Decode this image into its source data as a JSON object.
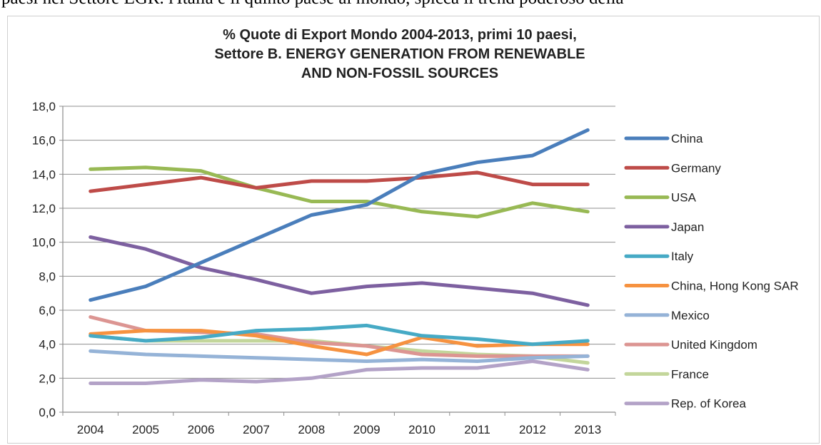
{
  "top_text": "paesi nel Settore EGR. l'Italia è il quinto paese al mondo, spicca il trend poderoso della",
  "chart_data": {
    "type": "line",
    "title_lines": [
      "% Quote di Export Mondo 2004-2013, primi 10 paesi,",
      "Settore B. ENERGY GENERATION FROM RENEWABLE",
      "AND NON-FOSSIL SOURCES"
    ],
    "xlabel": "",
    "ylabel": "",
    "x": [
      "2004",
      "2005",
      "2006",
      "2007",
      "2008",
      "2009",
      "2010",
      "2011",
      "2012",
      "2013"
    ],
    "ylim": [
      0,
      18
    ],
    "yticks": [
      "0,0",
      "2,0",
      "4,0",
      "6,0",
      "8,0",
      "10,0",
      "12,0",
      "14,0",
      "16,0",
      "18,0"
    ],
    "grid": true,
    "legend_position": "right",
    "series": [
      {
        "name": "China",
        "color": "#4a7ebb",
        "values": [
          6.6,
          7.4,
          8.8,
          10.2,
          11.6,
          12.2,
          14.0,
          14.7,
          15.1,
          16.6
        ]
      },
      {
        "name": "Germany",
        "color": "#be4b48",
        "values": [
          13.0,
          13.4,
          13.8,
          13.2,
          13.6,
          13.6,
          13.8,
          14.1,
          13.4,
          13.4
        ]
      },
      {
        "name": "USA",
        "color": "#98b954",
        "values": [
          14.3,
          14.4,
          14.2,
          13.2,
          12.4,
          12.4,
          11.8,
          11.5,
          12.3,
          11.8
        ]
      },
      {
        "name": "Japan",
        "color": "#7d60a0",
        "values": [
          10.3,
          9.6,
          8.5,
          7.8,
          7.0,
          7.4,
          7.6,
          7.3,
          7.0,
          6.3
        ]
      },
      {
        "name": "Italy",
        "color": "#46aac5",
        "values": [
          4.5,
          4.2,
          4.4,
          4.8,
          4.9,
          5.1,
          4.5,
          4.3,
          4.0,
          4.2
        ]
      },
      {
        "name": "China, Hong Kong SAR",
        "color": "#f69240",
        "values": [
          4.6,
          4.8,
          4.8,
          4.5,
          3.9,
          3.4,
          4.4,
          3.9,
          4.0,
          4.0
        ]
      },
      {
        "name": "Mexico",
        "color": "#95b3d7",
        "values": [
          3.6,
          3.4,
          3.3,
          3.2,
          3.1,
          3.0,
          3.1,
          3.0,
          3.2,
          3.3
        ]
      },
      {
        "name": "United Kingdom",
        "color": "#dc9592",
        "values": [
          5.6,
          4.8,
          4.7,
          4.6,
          4.1,
          3.9,
          3.4,
          3.3,
          3.3,
          3.3
        ]
      },
      {
        "name": "France",
        "color": "#c3d69b",
        "values": [
          4.5,
          4.2,
          4.2,
          4.2,
          4.2,
          3.9,
          3.6,
          3.4,
          3.3,
          2.9
        ]
      },
      {
        "name": "Rep. of Korea",
        "color": "#b3a2c7",
        "values": [
          1.7,
          1.7,
          1.9,
          1.8,
          2.0,
          2.5,
          2.6,
          2.6,
          3.0,
          2.5
        ]
      }
    ]
  }
}
